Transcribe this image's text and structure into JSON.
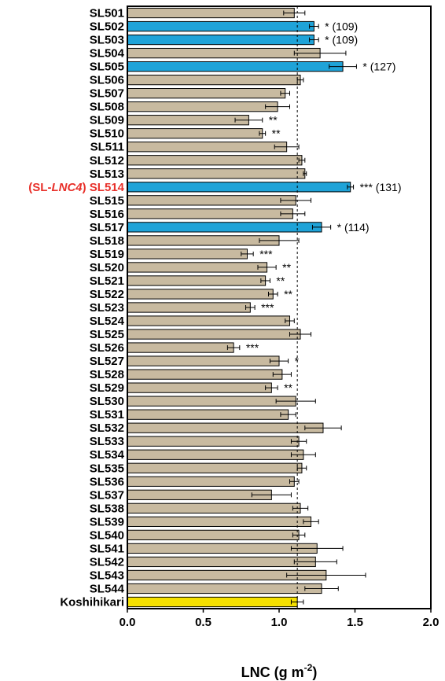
{
  "chart_data": {
    "type": "bar",
    "orientation": "horizontal",
    "xlabel_main": "LNC (g m",
    "xlabel_exp": "-2",
    "xlabel_close": ")",
    "xlim": [
      0.0,
      2.0
    ],
    "xticks": [
      "0.0",
      "0.5",
      "1.0",
      "1.5",
      "2.0"
    ],
    "reference_line": 1.12,
    "highlight_prefix": "(SL-",
    "highlight_italic": "LNC4",
    "highlight_suffix": ")",
    "colors": {
      "normal": "#c8baa0",
      "significant": "#1fa3d8",
      "control": "#f5e000",
      "highlight_label": "#e8302a",
      "line": "#000000"
    },
    "bars": [
      {
        "label": "SL501",
        "value": 1.1,
        "err": 0.07,
        "ann": "",
        "color": "normal"
      },
      {
        "label": "SL502",
        "value": 1.23,
        "err": 0.03,
        "ann": "*  (109)",
        "color": "significant"
      },
      {
        "label": "SL503",
        "value": 1.23,
        "err": 0.03,
        "ann": "*  (109)",
        "color": "significant"
      },
      {
        "label": "SL504",
        "value": 1.27,
        "err": 0.17,
        "ann": "",
        "color": "normal"
      },
      {
        "label": "SL505",
        "value": 1.42,
        "err": 0.09,
        "ann": "*  (127)",
        "color": "significant"
      },
      {
        "label": "SL506",
        "value": 1.14,
        "err": 0.02,
        "ann": "",
        "color": "normal"
      },
      {
        "label": "SL507",
        "value": 1.04,
        "err": 0.03,
        "ann": "",
        "color": "normal"
      },
      {
        "label": "SL508",
        "value": 0.99,
        "err": 0.08,
        "ann": "",
        "color": "normal"
      },
      {
        "label": "SL509",
        "value": 0.8,
        "err": 0.09,
        "ann": "**",
        "color": "normal"
      },
      {
        "label": "SL510",
        "value": 0.89,
        "err": 0.02,
        "ann": "**",
        "color": "normal"
      },
      {
        "label": "SL511",
        "value": 1.05,
        "err": 0.08,
        "ann": "",
        "color": "normal"
      },
      {
        "label": "SL512",
        "value": 1.15,
        "err": 0.02,
        "ann": "",
        "color": "normal"
      },
      {
        "label": "SL513",
        "value": 1.17,
        "err": 0.01,
        "ann": "",
        "color": "normal"
      },
      {
        "label": "SL514",
        "value": 1.47,
        "err": 0.02,
        "ann": "***  (131)",
        "color": "significant",
        "highlight": true
      },
      {
        "label": "SL515",
        "value": 1.11,
        "err": 0.1,
        "ann": "",
        "color": "normal"
      },
      {
        "label": "SL516",
        "value": 1.09,
        "err": 0.08,
        "ann": "",
        "color": "normal"
      },
      {
        "label": "SL517",
        "value": 1.28,
        "err": 0.06,
        "ann": "*  (114)",
        "color": "significant"
      },
      {
        "label": "SL518",
        "value": 1.0,
        "err": 0.13,
        "ann": "",
        "color": "normal"
      },
      {
        "label": "SL519",
        "value": 0.79,
        "err": 0.04,
        "ann": "***",
        "color": "normal"
      },
      {
        "label": "SL520",
        "value": 0.92,
        "err": 0.06,
        "ann": "**",
        "color": "normal"
      },
      {
        "label": "SL521",
        "value": 0.91,
        "err": 0.03,
        "ann": "**",
        "color": "normal"
      },
      {
        "label": "SL522",
        "value": 0.96,
        "err": 0.03,
        "ann": "**",
        "color": "normal"
      },
      {
        "label": "SL523",
        "value": 0.81,
        "err": 0.03,
        "ann": "***",
        "color": "normal"
      },
      {
        "label": "SL524",
        "value": 1.07,
        "err": 0.03,
        "ann": "",
        "color": "normal"
      },
      {
        "label": "SL525",
        "value": 1.14,
        "err": 0.07,
        "ann": "",
        "color": "normal"
      },
      {
        "label": "SL526",
        "value": 0.7,
        "err": 0.04,
        "ann": "***",
        "color": "normal"
      },
      {
        "label": "SL527",
        "value": 1.0,
        "err": 0.06,
        "ann": "*",
        "color": "normal"
      },
      {
        "label": "SL528",
        "value": 1.02,
        "err": 0.06,
        "ann": "",
        "color": "normal"
      },
      {
        "label": "SL529",
        "value": 0.95,
        "err": 0.04,
        "ann": "**",
        "color": "normal"
      },
      {
        "label": "SL530",
        "value": 1.11,
        "err": 0.13,
        "ann": "",
        "color": "normal"
      },
      {
        "label": "SL531",
        "value": 1.06,
        "err": 0.05,
        "ann": "",
        "color": "normal"
      },
      {
        "label": "SL532",
        "value": 1.29,
        "err": 0.12,
        "ann": "",
        "color": "normal"
      },
      {
        "label": "SL533",
        "value": 1.13,
        "err": 0.05,
        "ann": "",
        "color": "normal"
      },
      {
        "label": "SL534",
        "value": 1.16,
        "err": 0.08,
        "ann": "",
        "color": "normal"
      },
      {
        "label": "SL535",
        "value": 1.15,
        "err": 0.03,
        "ann": "",
        "color": "normal"
      },
      {
        "label": "SL536",
        "value": 1.1,
        "err": 0.03,
        "ann": "",
        "color": "normal"
      },
      {
        "label": "SL537",
        "value": 0.95,
        "err": 0.13,
        "ann": "",
        "color": "normal"
      },
      {
        "label": "SL538",
        "value": 1.14,
        "err": 0.05,
        "ann": "",
        "color": "normal"
      },
      {
        "label": "SL539",
        "value": 1.21,
        "err": 0.05,
        "ann": "",
        "color": "normal"
      },
      {
        "label": "SL540",
        "value": 1.13,
        "err": 0.04,
        "ann": "",
        "color": "normal"
      },
      {
        "label": "SL541",
        "value": 1.25,
        "err": 0.17,
        "ann": "",
        "color": "normal"
      },
      {
        "label": "SL542",
        "value": 1.24,
        "err": 0.14,
        "ann": "",
        "color": "normal"
      },
      {
        "label": "SL543",
        "value": 1.31,
        "err": 0.26,
        "ann": "",
        "color": "normal"
      },
      {
        "label": "SL544",
        "value": 1.28,
        "err": 0.11,
        "ann": "",
        "color": "normal"
      },
      {
        "label": "Koshihikari",
        "value": 1.12,
        "err": 0.04,
        "ann": "",
        "color": "control"
      }
    ]
  }
}
